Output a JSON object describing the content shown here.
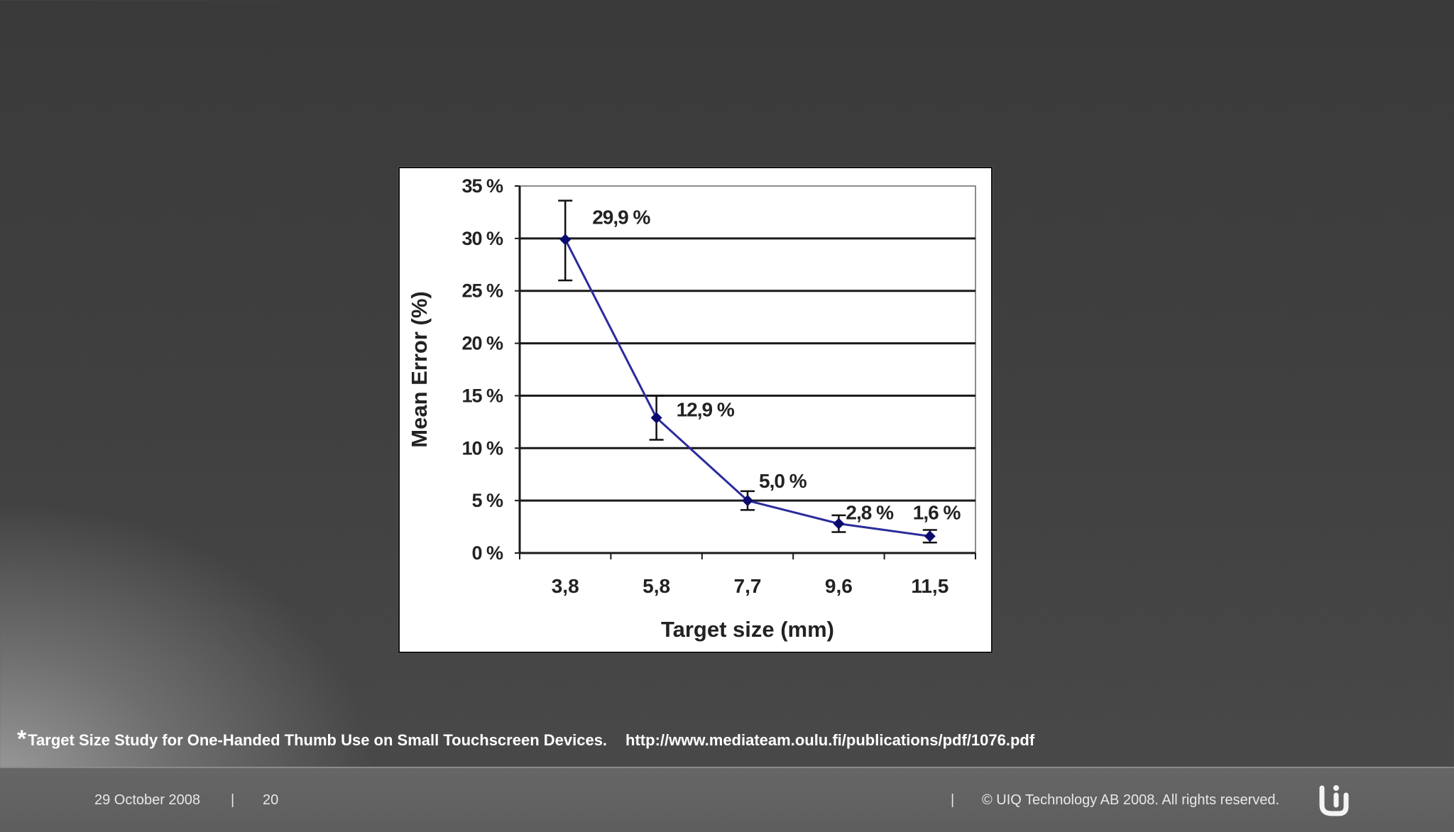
{
  "chart_data": {
    "type": "line",
    "title": "",
    "xlabel": "Target size (mm)",
    "ylabel": "Mean Error (%)",
    "categories": [
      "3,8",
      "5,8",
      "7,7",
      "9,6",
      "11,5"
    ],
    "series": [
      {
        "name": "Mean Error",
        "values": [
          29.9,
          12.9,
          5.0,
          2.8,
          1.6
        ],
        "error_low": [
          26.0,
          10.8,
          4.1,
          2.0,
          1.0
        ],
        "error_high": [
          33.6,
          15.0,
          5.9,
          3.6,
          2.2
        ],
        "labels": [
          "29,9 %",
          "12,9 %",
          "5,0 %",
          "2,8 %",
          "1,6 %"
        ],
        "color": "#2b2b9c"
      }
    ],
    "ylim": [
      0,
      35
    ],
    "yticks": [
      0,
      5,
      10,
      15,
      20,
      25,
      30,
      35
    ],
    "ytick_labels": [
      "0 %",
      "5 %",
      "10 %",
      "15 %",
      "20 %",
      "25 %",
      "30 %",
      "35 %"
    ],
    "grid": true
  },
  "footnote": {
    "marker": "*",
    "text": "Target Size Study for One-Handed Thumb Use on Small Touchscreen Devices.",
    "url": "http://www.mediateam.oulu.fi/publications/pdf/1076.pdf"
  },
  "footer": {
    "date": "29 October 2008",
    "separator": "|",
    "page": "20",
    "copyright": "© UIQ Technology AB 2008. All rights reserved.",
    "logo_text": "Ui"
  },
  "colors": {
    "series": "#2b2b9c",
    "marker": "#0a0a6e",
    "footer_text": "#e8e8e8"
  }
}
